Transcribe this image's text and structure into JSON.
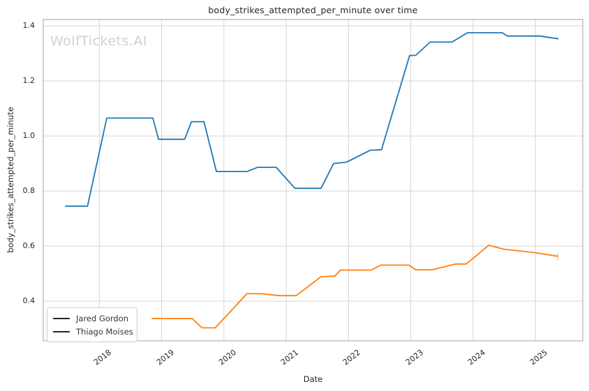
{
  "watermark": "WolfTickets.AI",
  "chart_data": {
    "type": "line",
    "title": "body_strikes_attempted_per_minute over time",
    "xlabel": "Date",
    "ylabel": "body_strikes_attempted_per_minute",
    "xlim": [
      2017.1,
      2025.76
    ],
    "ylim": [
      0.256,
      1.423
    ],
    "x_ticks": [
      2018,
      2019,
      2020,
      2021,
      2022,
      2023,
      2024,
      2025
    ],
    "y_ticks": [
      0.4,
      0.6,
      0.8,
      1.0,
      1.2,
      1.4
    ],
    "grid": true,
    "legend_position": "lower left",
    "series": [
      {
        "name": "Jared Gordon",
        "color": "#1f77b4",
        "end_cap": false,
        "points": [
          [
            2017.45,
            0.745
          ],
          [
            2017.81,
            0.745
          ],
          [
            2018.12,
            1.065
          ],
          [
            2018.86,
            1.065
          ],
          [
            2018.95,
            0.988
          ],
          [
            2019.37,
            0.988
          ],
          [
            2019.48,
            1.052
          ],
          [
            2019.68,
            1.052
          ],
          [
            2019.88,
            0.871
          ],
          [
            2020.37,
            0.871
          ],
          [
            2020.54,
            0.886
          ],
          [
            2020.84,
            0.886
          ],
          [
            2021.14,
            0.81
          ],
          [
            2021.56,
            0.81
          ],
          [
            2021.76,
            0.9
          ],
          [
            2021.97,
            0.905
          ],
          [
            2022.35,
            0.948
          ],
          [
            2022.53,
            0.95
          ],
          [
            2022.98,
            1.292
          ],
          [
            2023.08,
            1.293
          ],
          [
            2023.31,
            1.341
          ],
          [
            2023.66,
            1.341
          ],
          [
            2023.91,
            1.375
          ],
          [
            2024.47,
            1.375
          ],
          [
            2024.55,
            1.363
          ],
          [
            2025.07,
            1.363
          ],
          [
            2025.37,
            1.353
          ]
        ]
      },
      {
        "name": "Thiago Moises",
        "color": "#ff7f0e",
        "end_cap": true,
        "points": [
          [
            2018.84,
            0.337
          ],
          [
            2019.49,
            0.337
          ],
          [
            2019.65,
            0.303
          ],
          [
            2019.86,
            0.303
          ],
          [
            2020.37,
            0.427
          ],
          [
            2020.6,
            0.427
          ],
          [
            2020.9,
            0.42
          ],
          [
            2021.16,
            0.42
          ],
          [
            2021.56,
            0.489
          ],
          [
            2021.78,
            0.491
          ],
          [
            2021.87,
            0.513
          ],
          [
            2022.36,
            0.513
          ],
          [
            2022.52,
            0.531
          ],
          [
            2022.97,
            0.531
          ],
          [
            2023.08,
            0.514
          ],
          [
            2023.34,
            0.514
          ],
          [
            2023.72,
            0.535
          ],
          [
            2023.89,
            0.535
          ],
          [
            2024.25,
            0.603
          ],
          [
            2024.49,
            0.589
          ],
          [
            2025.0,
            0.576
          ],
          [
            2025.36,
            0.563
          ]
        ]
      }
    ]
  }
}
